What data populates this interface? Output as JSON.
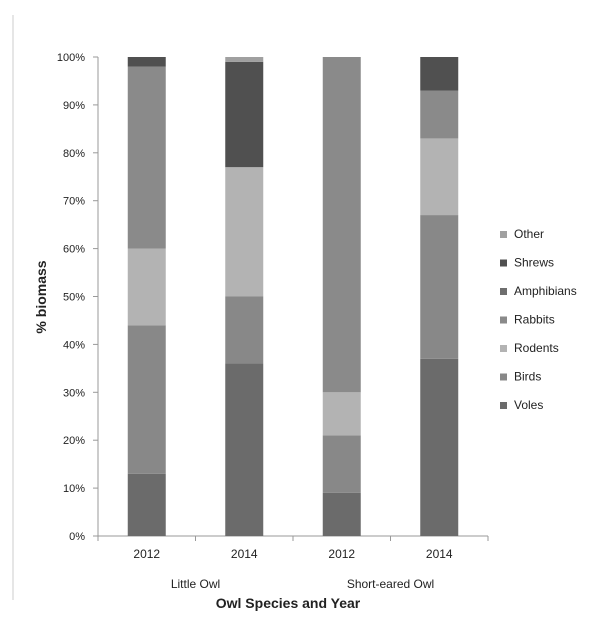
{
  "chart_data": {
    "type": "bar",
    "stacked": true,
    "categories": [
      "2012",
      "2014",
      "2012",
      "2014"
    ],
    "groups": [
      {
        "label": "Little Owl",
        "categories": [
          "2012",
          "2014"
        ]
      },
      {
        "label": "Short-eared Owl",
        "categories": [
          "2012",
          "2014"
        ]
      }
    ],
    "xlabel": "Owl Species and Year",
    "ylabel": "% biomass",
    "ylim": [
      0,
      100
    ],
    "yticks": [
      "0%",
      "10%",
      "20%",
      "30%",
      "40%",
      "50%",
      "60%",
      "70%",
      "80%",
      "90%",
      "100%"
    ],
    "legend_position": "right",
    "series": [
      {
        "name": "Voles",
        "color": "#6b6b6b",
        "values": [
          13,
          36,
          9,
          37
        ]
      },
      {
        "name": "Birds",
        "color": "#888888",
        "values": [
          31,
          14,
          12,
          30
        ]
      },
      {
        "name": "Rodents",
        "color": "#b3b3b3",
        "values": [
          16,
          27,
          9,
          16
        ]
      },
      {
        "name": "Rabbits",
        "color": "#8a8a8a",
        "values": [
          38,
          0,
          70,
          10
        ]
      },
      {
        "name": "Amphibians",
        "color": "#6e6e6e",
        "values": [
          0,
          0,
          0,
          0
        ]
      },
      {
        "name": "Shrews",
        "color": "#505050",
        "values": [
          2,
          22,
          0,
          7
        ]
      },
      {
        "name": "Other",
        "color": "#a0a0a0",
        "values": [
          0,
          1,
          0,
          0
        ]
      }
    ],
    "legend_order": [
      "Other",
      "Shrews",
      "Amphibians",
      "Rabbits",
      "Rodents",
      "Birds",
      "Voles"
    ]
  }
}
